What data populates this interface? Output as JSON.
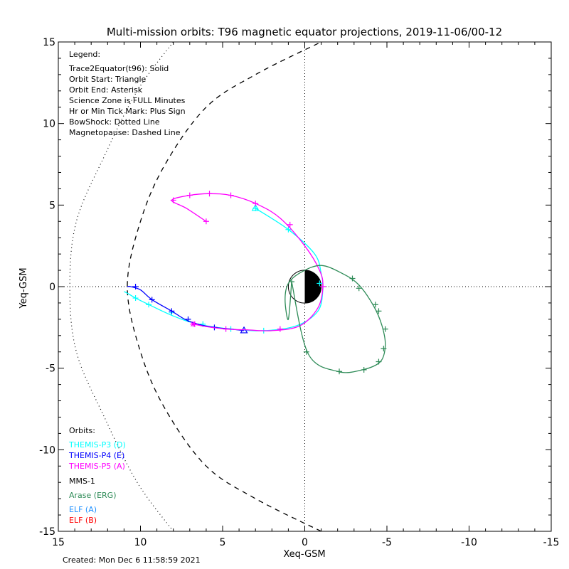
{
  "chart_data": {
    "type": "line",
    "title": "Multi-mission orbits: T96 magnetic equator projections, 2019-11-06/00-12",
    "xlabel": "Xeq-GSM",
    "ylabel": "Yeq-GSM",
    "xlim": [
      15,
      -15
    ],
    "ylim": [
      15,
      -15
    ],
    "x_ticks": [
      "15",
      "10",
      "5",
      "0",
      "-5",
      "-10",
      "-15"
    ],
    "y_ticks": [
      "-15",
      "-10",
      "-5",
      "0",
      "5",
      "10",
      "15"
    ],
    "legend": {
      "heading": "Legend:",
      "lines": [
        "Trace2Equator(t96): Solid",
        "Orbit Start: Triangle",
        "Orbit End: Asterisk",
        "Science Zone is FULL Minutes",
        "Hr or Min Tick Mark: Plus Sign",
        "BowShock: Dotted Line",
        "Magnetopause: Dashed Line"
      ]
    },
    "orbits_heading": "Orbits:",
    "orbits_legend": [
      {
        "label": "THEMIS-P3 (D)",
        "color": "#00ffff"
      },
      {
        "label": "THEMIS-P4 (E)",
        "color": "#0000ff"
      },
      {
        "label": "THEMIS-P5 (A)",
        "color": "#ff00ff"
      },
      {
        "label": "MMS-1",
        "color": "#000000"
      },
      {
        "label": "Arase (ERG)",
        "color": "#2e8b57"
      },
      {
        "label": "ELF (A)",
        "color": "#1e90ff"
      },
      {
        "label": "ELF (B)",
        "color": "#ff0000"
      }
    ],
    "footer": "Created: Mon Dec  6 11:58:59 2021",
    "magnetopause": {
      "style": "dashed",
      "x": [
        -1,
        3,
        6,
        8.5,
        10,
        10.8,
        10,
        8.5,
        6,
        3,
        -1
      ],
      "y": [
        -15,
        -13,
        -11,
        -7.5,
        -4,
        0,
        4,
        7.5,
        11,
        13,
        15
      ]
    },
    "bow_shock": {
      "style": "dotted",
      "x": [
        8,
        10.2,
        12.2,
        13.9,
        14.3,
        13.9,
        12.2,
        10.2,
        8
      ],
      "y": [
        -15,
        -12,
        -8,
        -4,
        0,
        4,
        8,
        12,
        15
      ]
    },
    "series": [
      {
        "name": "THEMIS-P3 (D)",
        "color": "#00ffff",
        "x": [
          3.0,
          1.0,
          -0.6,
          -1.0,
          -1.1,
          -0.8,
          0.5,
          2.5,
          4.5,
          6.5,
          8.0,
          9.5,
          10.3,
          10.8,
          11.0
        ],
        "y": [
          4.8,
          3.5,
          2.0,
          0.8,
          -0.2,
          -1.5,
          -2.4,
          -2.7,
          -2.6,
          -2.3,
          -1.8,
          -1.1,
          -0.7,
          -0.4,
          -0.3
        ],
        "start": [
          3.0,
          4.8
        ],
        "ticks": [
          [
            3.0,
            4.8
          ],
          [
            1.0,
            3.5
          ],
          [
            -0.9,
            0.2
          ],
          [
            2.5,
            -2.7
          ],
          [
            4.5,
            -2.6
          ],
          [
            6.2,
            -2.3
          ],
          [
            8.1,
            -1.6
          ],
          [
            9.5,
            -1.1
          ],
          [
            10.3,
            -0.7
          ]
        ]
      },
      {
        "name": "THEMIS-P4 (E)",
        "color": "#0000ff",
        "x": [
          3.7,
          4.5,
          5.5,
          6.5,
          7.3,
          8.1,
          9.3,
          10.0,
          10.6,
          10.8
        ],
        "y": [
          -2.7,
          -2.6,
          -2.5,
          -2.3,
          -2.0,
          -1.5,
          -0.8,
          -0.2,
          0.0,
          0.0
        ],
        "start": [
          3.7,
          -2.7
        ],
        "ticks": [
          [
            5.5,
            -2.5
          ],
          [
            7.1,
            -2.0
          ],
          [
            8.1,
            -1.5
          ],
          [
            9.3,
            -0.8
          ],
          [
            10.3,
            0.0
          ]
        ]
      },
      {
        "name": "THEMIS-P5 (A)",
        "color": "#ff00ff",
        "x": [
          6.0,
          7.2,
          8.1,
          7.0,
          5.8,
          4.5,
          3.0,
          1.5,
          0.0,
          -0.9,
          -1.1,
          -0.8,
          0.3,
          2.0,
          3.5,
          4.8,
          6.0,
          6.8
        ],
        "y": [
          4.0,
          4.8,
          5.3,
          5.6,
          5.7,
          5.6,
          5.1,
          4.2,
          2.5,
          1.0,
          0.0,
          -1.3,
          -2.4,
          -2.7,
          -2.65,
          -2.6,
          -2.45,
          -2.3
        ],
        "end": [
          6.8,
          -2.3
        ],
        "ticks": [
          [
            6.0,
            4.0
          ],
          [
            8.0,
            5.3
          ],
          [
            7.0,
            5.6
          ],
          [
            5.8,
            5.7
          ],
          [
            4.5,
            5.6
          ],
          [
            3.0,
            5.1
          ],
          [
            0.9,
            3.8
          ],
          [
            -1.1,
            0.0
          ],
          [
            1.5,
            -2.6
          ],
          [
            4.8,
            -2.6
          ],
          [
            6.7,
            -2.3
          ]
        ]
      },
      {
        "name": "Arase (ERG)",
        "color": "#2e8b57",
        "x": [
          0.8,
          -0.2,
          -2.0,
          -3.5,
          -4.6,
          -4.9,
          -4.7,
          -4.2,
          -3.3,
          -2.3,
          -1.0,
          0.2,
          1.0,
          1.2,
          1.0,
          0.8
        ],
        "y": [
          0.3,
          -4.1,
          -5.2,
          -5.1,
          -4.6,
          -3.6,
          -2.4,
          -1.2,
          0.1,
          0.8,
          1.3,
          0.9,
          0.2,
          -0.8,
          -2.0,
          0.3
        ],
        "ticks": [
          [
            0.8,
            0.3
          ],
          [
            -0.1,
            -4.0
          ],
          [
            -2.1,
            -5.2
          ],
          [
            -3.6,
            -5.1
          ],
          [
            -4.5,
            -4.6
          ],
          [
            -4.8,
            -3.8
          ],
          [
            -4.9,
            -2.6
          ],
          [
            -4.5,
            -1.5
          ],
          [
            -4.3,
            -1.1
          ],
          [
            -3.3,
            -0.1
          ],
          [
            -2.9,
            0.5
          ]
        ]
      }
    ],
    "earth": {
      "radius": 1.0
    }
  }
}
